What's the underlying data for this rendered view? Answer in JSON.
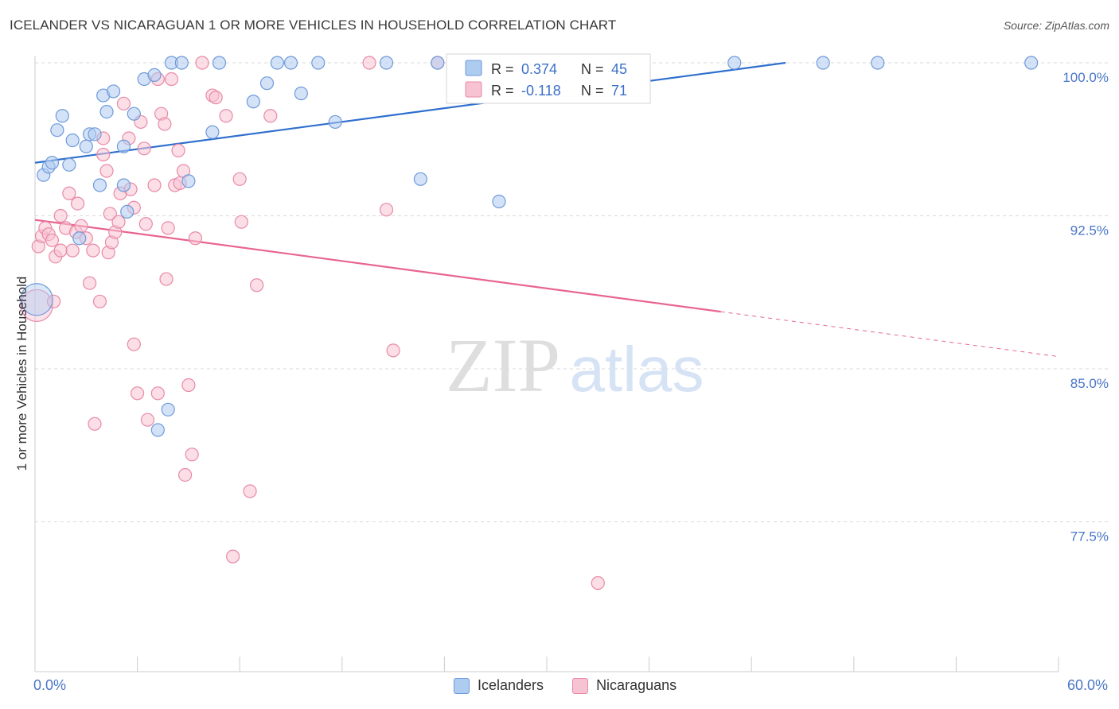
{
  "header": {
    "title": "ICELANDER VS NICARAGUAN 1 OR MORE VEHICLES IN HOUSEHOLD CORRELATION CHART",
    "source": "Source: ZipAtlas.com"
  },
  "watermark": {
    "zip": "ZIP",
    "atlas": "atlas"
  },
  "axes": {
    "ylabel": "1 or more Vehicles in Household",
    "x_min_label": "0.0%",
    "x_max_label": "60.0%"
  },
  "stats": {
    "r_label": "R =",
    "n_label": "N =",
    "series": [
      {
        "r": "0.374",
        "n": "45"
      },
      {
        "r": "-0.118",
        "n": "71"
      }
    ]
  },
  "legend": [
    {
      "label": "Icelanders",
      "color": "#aecbf0"
    },
    {
      "label": "Nicaraguans",
      "color": "#f7c2d2"
    }
  ],
  "colors": {
    "blue_fill": "#aecbf0",
    "blue_stroke": "#6f9ad9",
    "blue_line": "#2f6fce",
    "pink_fill": "#f7c2d2",
    "pink_stroke": "#e88aa8",
    "pink_line": "#e8658f",
    "grid": "#d9d9d9",
    "axis_text": "#4a76c8"
  },
  "chart_data": {
    "type": "scatter",
    "title": "ICELANDER VS NICARAGUAN 1 OR MORE VEHICLES IN HOUSEHOLD CORRELATION CHART",
    "xlabel": "",
    "ylabel": "1 or more Vehicles in Household",
    "xlim": [
      0,
      60
    ],
    "ylim": [
      70.5,
      101.5
    ],
    "y_ticks": [
      {
        "value": 100.0,
        "label": "100.0%"
      },
      {
        "value": 92.5,
        "label": "92.5%"
      },
      {
        "value": 85.0,
        "label": "85.0%"
      },
      {
        "value": 77.5,
        "label": "77.5%"
      }
    ],
    "x_tick_labels": [
      "0.0%",
      "60.0%"
    ],
    "grid": "horizontal dashed",
    "legend_position": "bottom-center",
    "series": [
      {
        "name": "Icelanders",
        "r": 0.374,
        "n": 45,
        "trend": {
          "x": [
            0,
            44
          ],
          "y": [
            95.1,
            100.0
          ]
        },
        "points": [
          {
            "x": 0.1,
            "y": 88.4,
            "big": true
          },
          {
            "x": 0.5,
            "y": 94.5
          },
          {
            "x": 0.8,
            "y": 94.9
          },
          {
            "x": 1.0,
            "y": 95.1
          },
          {
            "x": 1.3,
            "y": 96.7
          },
          {
            "x": 1.6,
            "y": 97.4
          },
          {
            "x": 2.0,
            "y": 95.0
          },
          {
            "x": 2.2,
            "y": 96.2
          },
          {
            "x": 2.6,
            "y": 91.4
          },
          {
            "x": 3.0,
            "y": 95.9
          },
          {
            "x": 3.2,
            "y": 96.5
          },
          {
            "x": 3.5,
            "y": 96.5
          },
          {
            "x": 3.8,
            "y": 94.0
          },
          {
            "x": 4.0,
            "y": 98.4
          },
          {
            "x": 4.2,
            "y": 97.6
          },
          {
            "x": 4.6,
            "y": 98.6
          },
          {
            "x": 5.2,
            "y": 95.9
          },
          {
            "x": 5.2,
            "y": 94.0
          },
          {
            "x": 5.4,
            "y": 92.7
          },
          {
            "x": 5.8,
            "y": 97.5
          },
          {
            "x": 6.4,
            "y": 99.2
          },
          {
            "x": 7.0,
            "y": 99.4
          },
          {
            "x": 7.2,
            "y": 82.0
          },
          {
            "x": 7.8,
            "y": 83.0
          },
          {
            "x": 8.0,
            "y": 100.0
          },
          {
            "x": 8.6,
            "y": 100.0
          },
          {
            "x": 9.0,
            "y": 94.2
          },
          {
            "x": 10.4,
            "y": 96.6
          },
          {
            "x": 10.8,
            "y": 100.0
          },
          {
            "x": 12.8,
            "y": 98.1
          },
          {
            "x": 13.6,
            "y": 99.0
          },
          {
            "x": 14.2,
            "y": 100.0
          },
          {
            "x": 15.0,
            "y": 100.0
          },
          {
            "x": 15.6,
            "y": 98.5
          },
          {
            "x": 16.6,
            "y": 100.0
          },
          {
            "x": 17.6,
            "y": 97.1
          },
          {
            "x": 20.6,
            "y": 100.0
          },
          {
            "x": 22.6,
            "y": 94.3
          },
          {
            "x": 23.6,
            "y": 100.0
          },
          {
            "x": 27.2,
            "y": 93.2
          },
          {
            "x": 32.2,
            "y": 100.0
          },
          {
            "x": 41.0,
            "y": 100.0
          },
          {
            "x": 46.2,
            "y": 100.0
          },
          {
            "x": 49.4,
            "y": 100.0
          },
          {
            "x": 58.4,
            "y": 100.0
          }
        ]
      },
      {
        "name": "Nicaraguans",
        "r": -0.118,
        "n": 71,
        "trend": {
          "x": [
            0,
            40.2
          ],
          "y": [
            92.3,
            87.8
          ]
        },
        "trend_dashed": {
          "x": [
            40.2,
            60
          ],
          "y": [
            87.8,
            85.6
          ]
        },
        "points": [
          {
            "x": 0.1,
            "y": 88.1,
            "big": true
          },
          {
            "x": 0.2,
            "y": 91.0
          },
          {
            "x": 0.4,
            "y": 91.5
          },
          {
            "x": 0.6,
            "y": 91.9
          },
          {
            "x": 0.8,
            "y": 91.6
          },
          {
            "x": 1.0,
            "y": 91.3
          },
          {
            "x": 1.2,
            "y": 90.5
          },
          {
            "x": 1.1,
            "y": 88.3
          },
          {
            "x": 1.5,
            "y": 90.8
          },
          {
            "x": 1.5,
            "y": 92.5
          },
          {
            "x": 1.8,
            "y": 91.9
          },
          {
            "x": 2.0,
            "y": 93.6
          },
          {
            "x": 2.2,
            "y": 90.8
          },
          {
            "x": 2.4,
            "y": 91.7
          },
          {
            "x": 2.5,
            "y": 93.1
          },
          {
            "x": 2.7,
            "y": 92.0
          },
          {
            "x": 3.0,
            "y": 91.4
          },
          {
            "x": 3.2,
            "y": 89.2
          },
          {
            "x": 3.4,
            "y": 90.8
          },
          {
            "x": 3.5,
            "y": 82.3
          },
          {
            "x": 3.8,
            "y": 88.3
          },
          {
            "x": 4.0,
            "y": 96.3
          },
          {
            "x": 4.0,
            "y": 95.5
          },
          {
            "x": 4.2,
            "y": 94.7
          },
          {
            "x": 4.3,
            "y": 90.7
          },
          {
            "x": 4.4,
            "y": 92.6
          },
          {
            "x": 4.5,
            "y": 91.2
          },
          {
            "x": 4.7,
            "y": 91.7
          },
          {
            "x": 4.9,
            "y": 92.2
          },
          {
            "x": 5.0,
            "y": 93.6
          },
          {
            "x": 5.2,
            "y": 98.0
          },
          {
            "x": 5.5,
            "y": 96.3
          },
          {
            "x": 5.6,
            "y": 93.8
          },
          {
            "x": 5.8,
            "y": 86.2
          },
          {
            "x": 5.8,
            "y": 92.9
          },
          {
            "x": 6.0,
            "y": 83.8
          },
          {
            "x": 6.2,
            "y": 97.1
          },
          {
            "x": 6.4,
            "y": 95.8
          },
          {
            "x": 6.5,
            "y": 92.1
          },
          {
            "x": 6.6,
            "y": 82.5
          },
          {
            "x": 7.0,
            "y": 94.0
          },
          {
            "x": 7.2,
            "y": 99.2
          },
          {
            "x": 7.2,
            "y": 83.8
          },
          {
            "x": 7.4,
            "y": 97.5
          },
          {
            "x": 7.6,
            "y": 97.0
          },
          {
            "x": 7.7,
            "y": 89.4
          },
          {
            "x": 7.8,
            "y": 91.9
          },
          {
            "x": 8.0,
            "y": 99.2
          },
          {
            "x": 8.2,
            "y": 94.0
          },
          {
            "x": 8.4,
            "y": 95.7
          },
          {
            "x": 8.5,
            "y": 94.1
          },
          {
            "x": 8.7,
            "y": 94.7
          },
          {
            "x": 8.8,
            "y": 79.8
          },
          {
            "x": 9.0,
            "y": 84.2
          },
          {
            "x": 9.2,
            "y": 80.8
          },
          {
            "x": 9.4,
            "y": 91.4
          },
          {
            "x": 9.8,
            "y": 100.0
          },
          {
            "x": 10.4,
            "y": 98.4
          },
          {
            "x": 10.6,
            "y": 98.3
          },
          {
            "x": 11.2,
            "y": 97.4
          },
          {
            "x": 11.6,
            "y": 75.8
          },
          {
            "x": 12.0,
            "y": 94.3
          },
          {
            "x": 12.1,
            "y": 92.2
          },
          {
            "x": 12.6,
            "y": 79.0
          },
          {
            "x": 13.0,
            "y": 89.1
          },
          {
            "x": 13.8,
            "y": 97.4
          },
          {
            "x": 19.6,
            "y": 100.0
          },
          {
            "x": 20.6,
            "y": 92.8
          },
          {
            "x": 21.0,
            "y": 85.9
          },
          {
            "x": 23.6,
            "y": 100.0
          },
          {
            "x": 33.0,
            "y": 74.5
          }
        ]
      }
    ]
  }
}
